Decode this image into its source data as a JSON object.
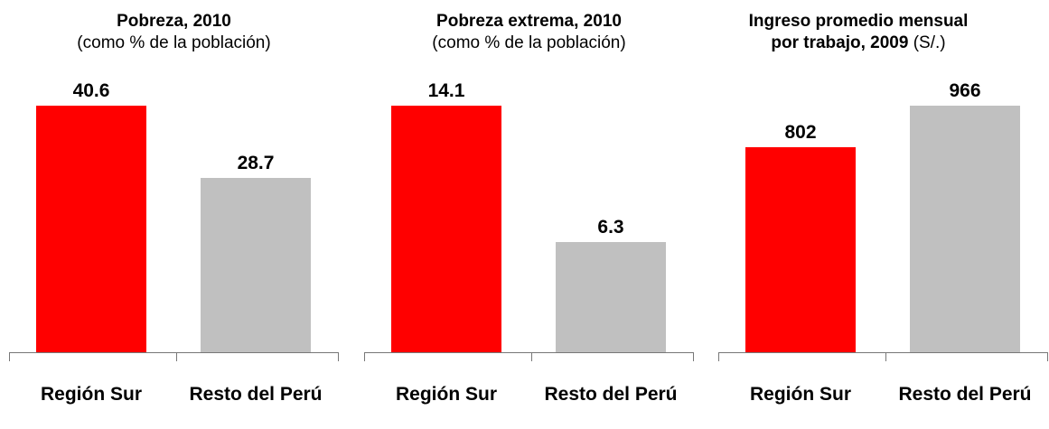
{
  "chart_data": [
    {
      "type": "bar",
      "title": "Pobreza, 2010",
      "subtitle": "(como % de la población)",
      "categories": [
        "Región Sur",
        "Resto del Perú"
      ],
      "values": [
        40.6,
        28.7
      ],
      "colors": [
        "#ff0000",
        "#c0c0c0"
      ]
    },
    {
      "type": "bar",
      "title": "Pobreza extrema, 2010",
      "subtitle": "(como % de la población)",
      "categories": [
        "Región Sur",
        "Resto del Perú"
      ],
      "values": [
        14.1,
        6.3
      ],
      "colors": [
        "#ff0000",
        "#c0c0c0"
      ]
    },
    {
      "type": "bar",
      "title": "Ingreso promedio mensual por trabajo, 2009",
      "subtitle": "(S/.)",
      "categories": [
        "Región Sur",
        "Resto del Perú"
      ],
      "values": [
        802,
        966
      ],
      "colors": [
        "#ff0000",
        "#c0c0c0"
      ]
    }
  ]
}
